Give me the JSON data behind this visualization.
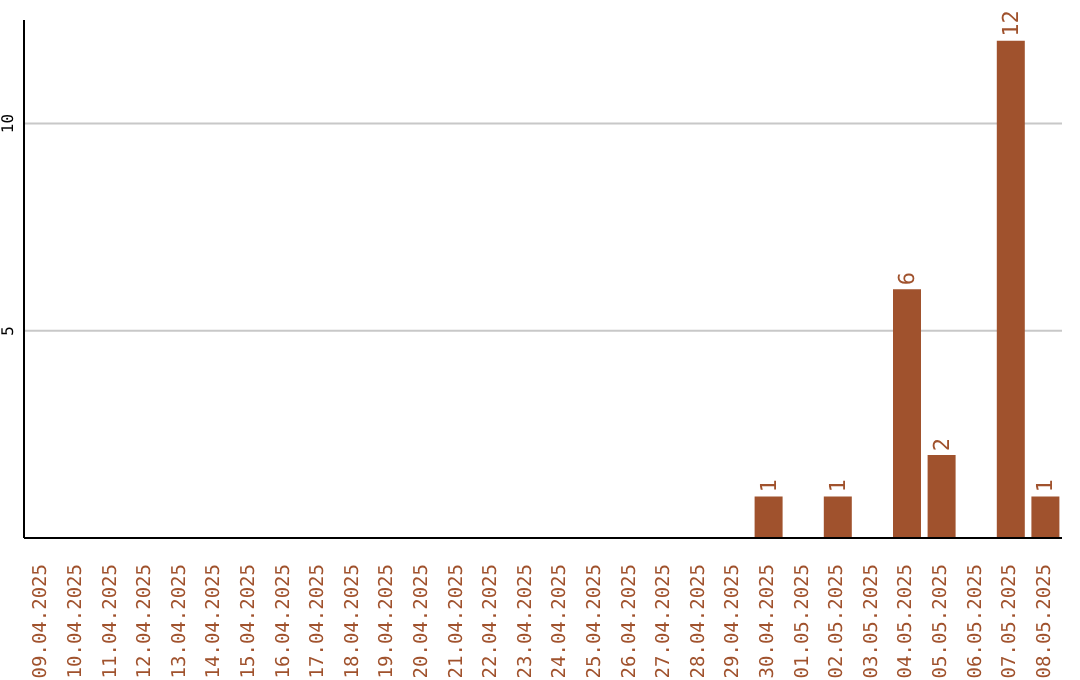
{
  "chart_data": {
    "type": "bar",
    "categories": [
      "09.04.2025",
      "10.04.2025",
      "11.04.2025",
      "12.04.2025",
      "13.04.2025",
      "14.04.2025",
      "15.04.2025",
      "16.04.2025",
      "17.04.2025",
      "18.04.2025",
      "19.04.2025",
      "20.04.2025",
      "21.04.2025",
      "22.04.2025",
      "23.04.2025",
      "24.04.2025",
      "25.04.2025",
      "26.04.2025",
      "27.04.2025",
      "28.04.2025",
      "29.04.2025",
      "30.04.2025",
      "01.05.2025",
      "02.05.2025",
      "03.05.2025",
      "04.05.2025",
      "05.05.2025",
      "06.05.2025",
      "07.05.2025",
      "08.05.2025"
    ],
    "values": [
      0,
      0,
      0,
      0,
      0,
      0,
      0,
      0,
      0,
      0,
      0,
      0,
      0,
      0,
      0,
      0,
      0,
      0,
      0,
      0,
      0,
      1,
      0,
      1,
      0,
      6,
      2,
      0,
      12,
      1
    ],
    "value_labels": [
      null,
      null,
      null,
      null,
      null,
      null,
      null,
      null,
      null,
      null,
      null,
      null,
      null,
      null,
      null,
      null,
      null,
      null,
      null,
      null,
      null,
      "1",
      null,
      "1",
      null,
      "6",
      "2",
      null,
      "12",
      "1"
    ],
    "color": "#a0522d",
    "ylim": [
      0,
      12.5
    ],
    "yticks": [
      5,
      10
    ],
    "grid": "y",
    "legend": false
  }
}
